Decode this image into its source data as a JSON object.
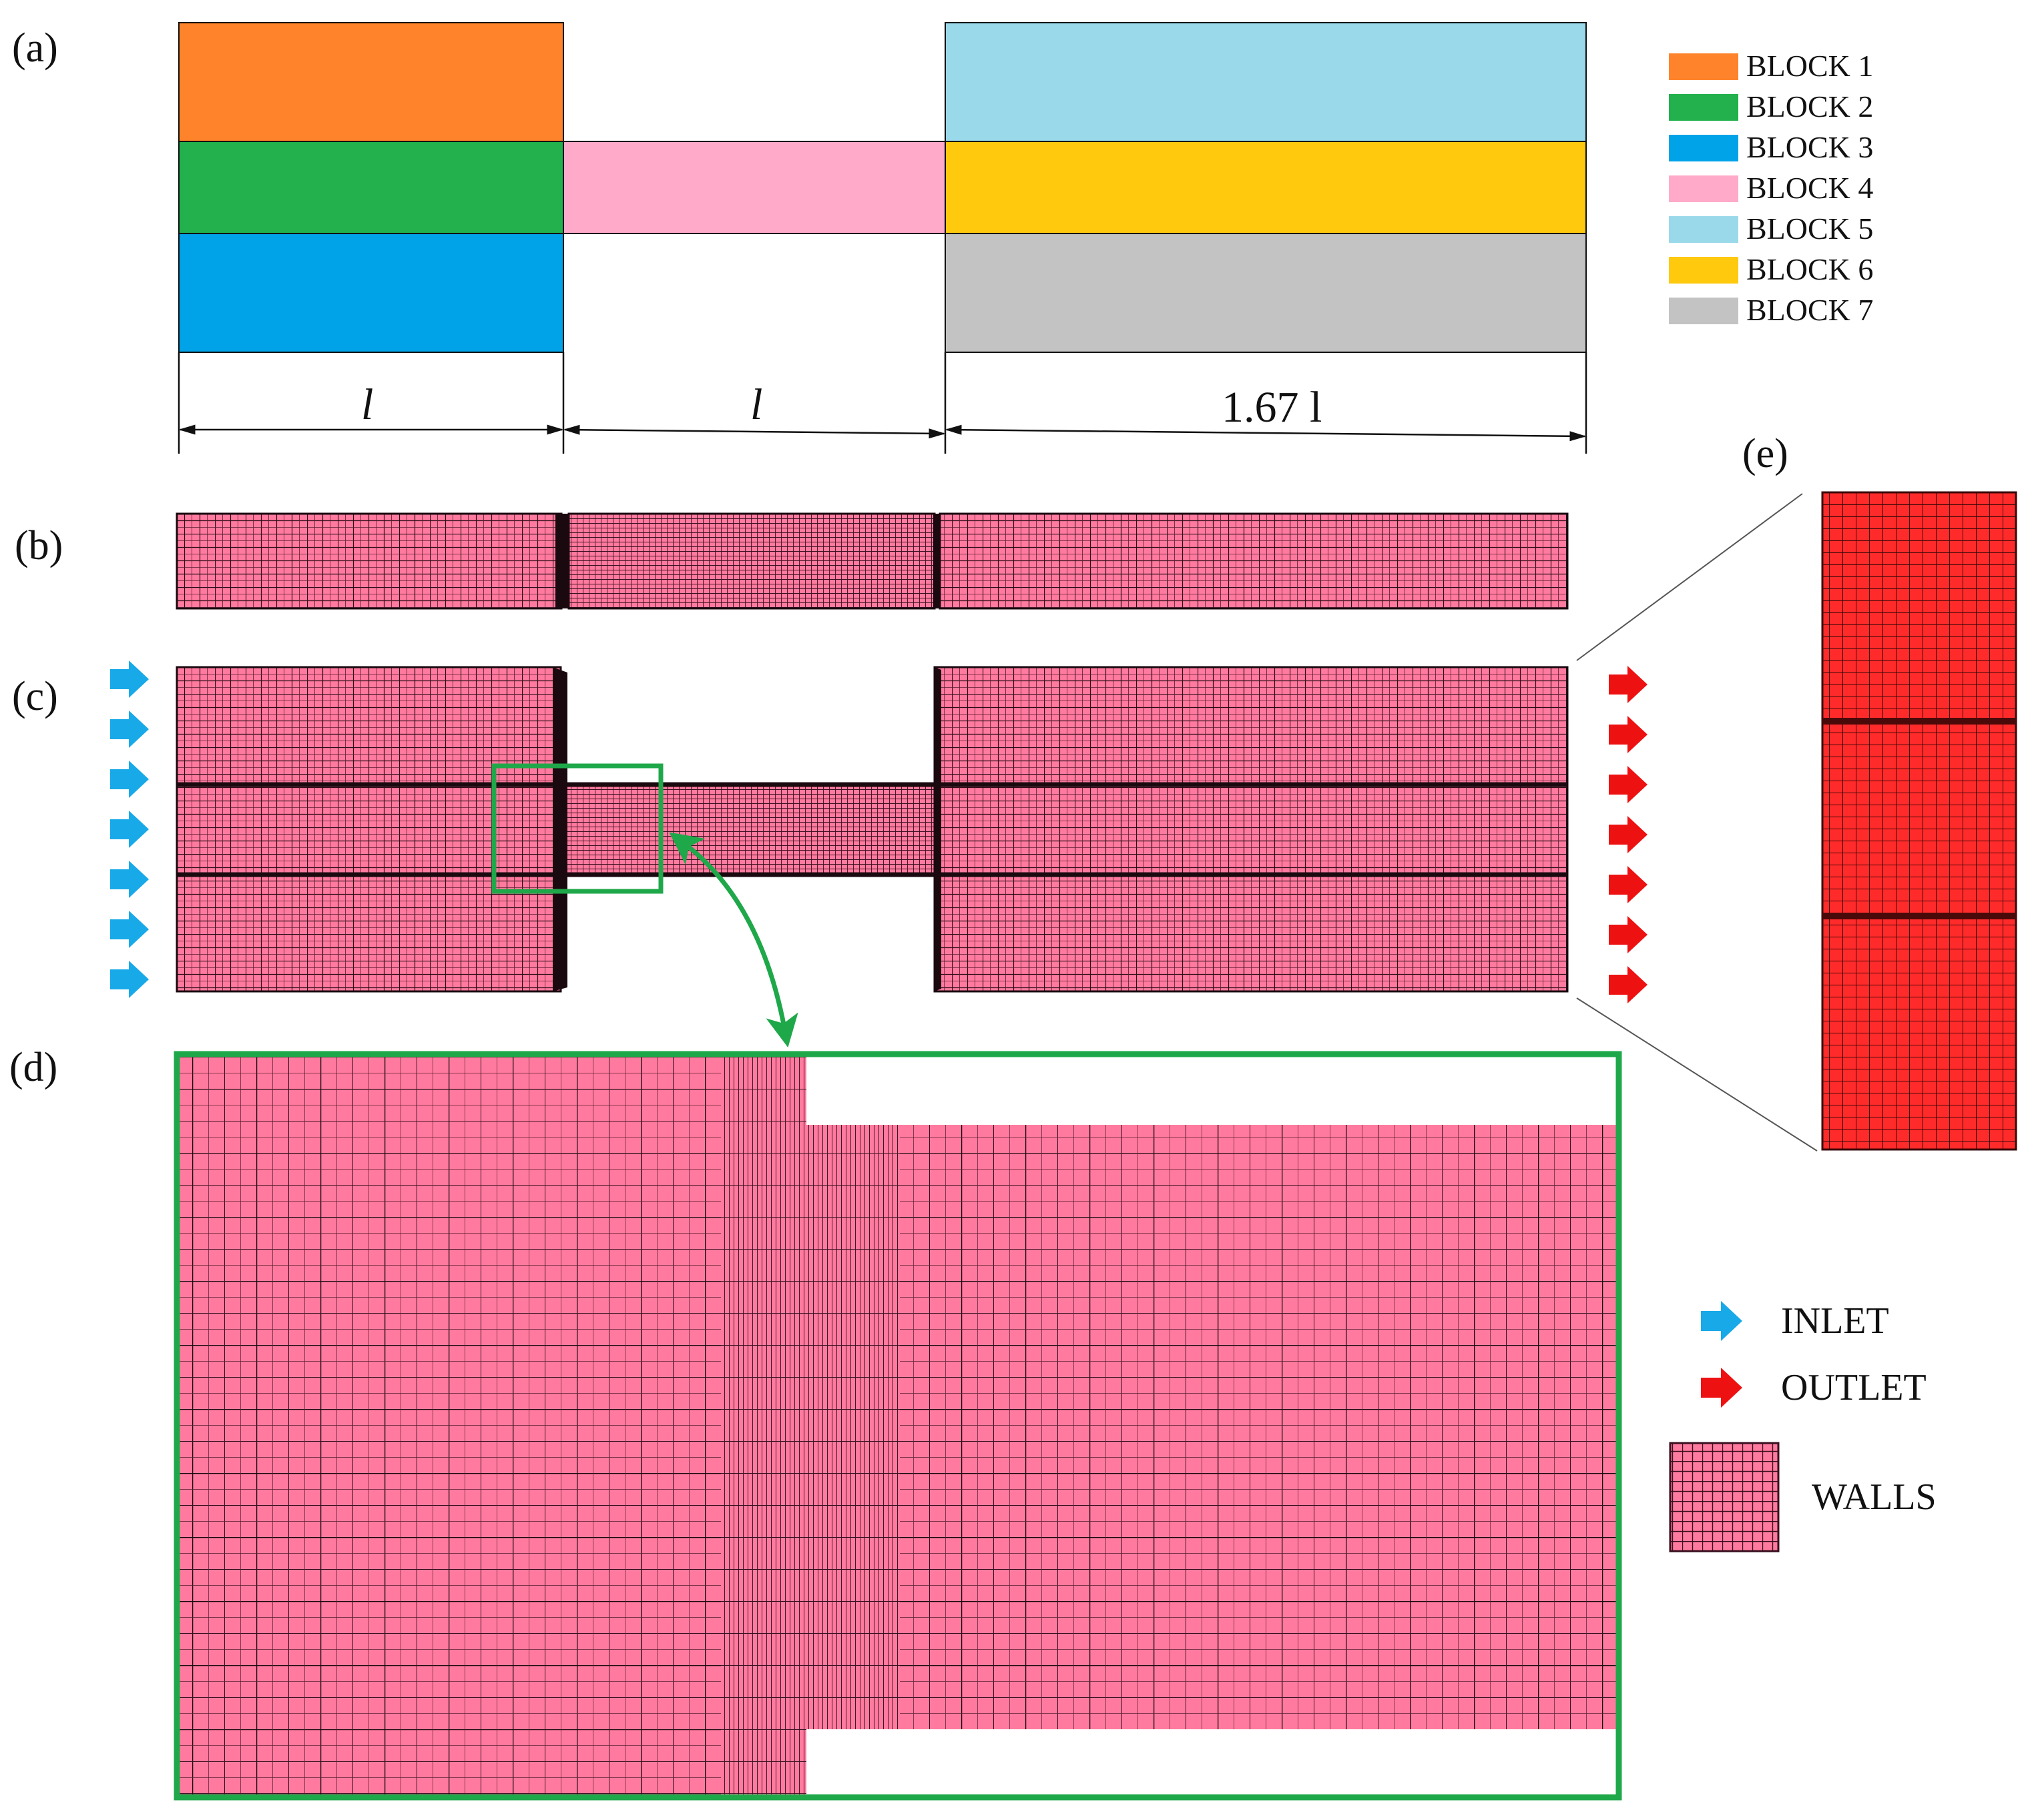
{
  "panels": {
    "a": "(a)",
    "b": "(b)",
    "c": "(c)",
    "d": "(d)",
    "e": "(e)"
  },
  "blocks": [
    {
      "id": "1",
      "label": "BLOCK 1",
      "color": "#FF832A"
    },
    {
      "id": "2",
      "label": "BLOCK 2",
      "color": "#22B14C"
    },
    {
      "id": "3",
      "label": "BLOCK 3",
      "color": "#00A2E8"
    },
    {
      "id": "4",
      "label": "BLOCK 4",
      "color": "#FFAAC9"
    },
    {
      "id": "5",
      "label": "BLOCK 5",
      "color": "#99D9EA"
    },
    {
      "id": "6",
      "label": "BLOCK 6",
      "color": "#FFC90E"
    },
    {
      "id": "7",
      "label": "BLOCK 7",
      "color": "#C3C3C3"
    }
  ],
  "dimensions": {
    "section1": "l",
    "section2": "l",
    "section3": "1.67 l"
  },
  "boundary_legend": {
    "inlet": "INLET",
    "outlet": "OUTLET",
    "walls": "WALLS"
  },
  "colors": {
    "mesh_fill": "#FF7A9E",
    "mesh_line": "#1a0a10",
    "inlet_arrow": "#18A9E8",
    "outlet_arrow": "#EE1111",
    "outlet_face": "#FF2A2A",
    "zoom_frame": "#1FA84A"
  }
}
